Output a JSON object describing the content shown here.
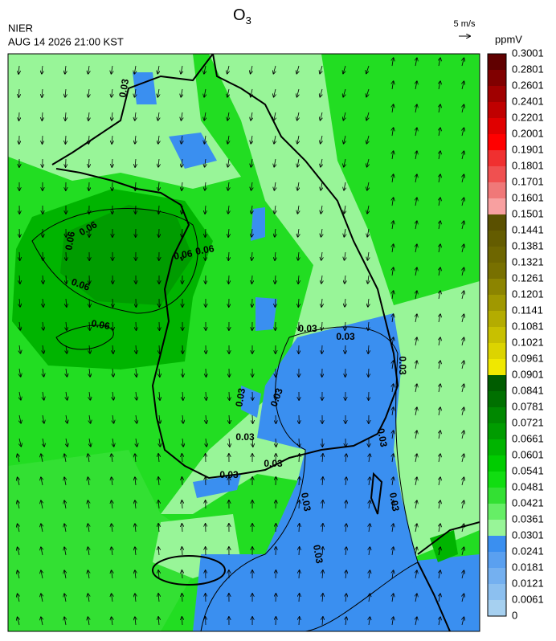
{
  "header": {
    "agency": "NIER",
    "timestamp": "AUG 14 2026 21:00 KST",
    "title": {
      "main": "O",
      "subscript": "3"
    },
    "wind_scale": "5 m/s"
  },
  "colorbar": {
    "unit": "ppmV",
    "levels": [
      "0",
      "0.0061",
      "0.0121",
      "0.0181",
      "0.0241",
      "0.0301",
      "0.0361",
      "0.0421",
      "0.0481",
      "0.0541",
      "0.0601",
      "0.0661",
      "0.0721",
      "0.0781",
      "0.0841",
      "0.0901",
      "0.0961",
      "0.1021",
      "0.1081",
      "0.1141",
      "0.1201",
      "0.1261",
      "0.1321",
      "0.1381",
      "0.1441",
      "0.1501",
      "0.1601",
      "0.1701",
      "0.1801",
      "0.1901",
      "0.2001",
      "0.2201",
      "0.2401",
      "0.2601",
      "0.2801",
      "0.3001"
    ],
    "colors": [
      "#a6d0f0",
      "#8cc0f0",
      "#74b0f0",
      "#5aa0f0",
      "#3a8ff0",
      "#98f598",
      "#66ee66",
      "#33e033",
      "#11dd11",
      "#00cc00",
      "#00b400",
      "#009c00",
      "#008800",
      "#007000",
      "#005c00",
      "#f0e800",
      "#dcd400",
      "#c8c000",
      "#b4ac00",
      "#a09800",
      "#8c8400",
      "#787000",
      "#6e6600",
      "#645c00",
      "#5a5000",
      "#f8a0a0",
      "#f07878",
      "#f05050",
      "#f03030",
      "#ff0000",
      "#e00000",
      "#c00000",
      "#a00000",
      "#800000",
      "#600000"
    ]
  },
  "contour_labels": [
    "0.06",
    "0.06",
    "0.06",
    "0.06",
    "0.06",
    "0.06",
    "0.03",
    "0.03",
    "0.03",
    "0.03",
    "0.03",
    "0.03",
    "0.03",
    "0.03",
    "0.03",
    "0.03",
    "0.03",
    "0.03",
    "0.03"
  ]
}
